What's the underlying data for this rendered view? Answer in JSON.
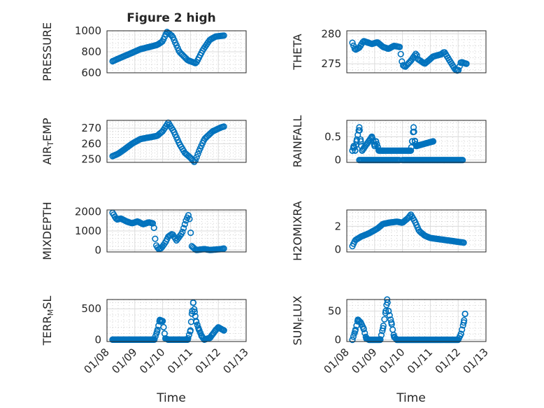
{
  "figure_title": "Figure 2 high",
  "x_axis_label": "Time",
  "x_ticks": [
    "01/08",
    "01/09",
    "01/10",
    "01/11",
    "01/12",
    "01/13"
  ],
  "chart_data": [
    {
      "id": "pressure",
      "type": "scatter",
      "title": "Figure 2 high",
      "ylabel_parts": [
        {
          "t": "PRESSURE"
        }
      ],
      "xlabel": "",
      "xlim": [
        0,
        5
      ],
      "ylim": [
        600,
        1000
      ],
      "yticks": [
        600,
        800,
        1000
      ],
      "ytick_labels": [
        "600",
        "800",
        "1000"
      ],
      "grid": true,
      "marker": "circle",
      "color": "#0072BD",
      "anchors": [
        [
          0.2,
          710
        ],
        [
          0.5,
          745
        ],
        [
          0.9,
          790
        ],
        [
          1.2,
          825
        ],
        [
          1.5,
          845
        ],
        [
          1.8,
          865
        ],
        [
          2.0,
          900
        ],
        [
          2.15,
          990
        ],
        [
          2.35,
          950
        ],
        [
          2.6,
          800
        ],
        [
          2.9,
          720
        ],
        [
          3.1,
          700
        ],
        [
          3.2,
          690
        ],
        [
          3.45,
          820
        ],
        [
          3.7,
          915
        ],
        [
          3.9,
          945
        ],
        [
          4.2,
          955
        ]
      ],
      "n_points": 95
    },
    {
      "id": "theta",
      "type": "scatter",
      "ylabel_parts": [
        {
          "t": "THETA"
        }
      ],
      "xlabel": "",
      "xlim": [
        0,
        5
      ],
      "ylim": [
        273.5,
        280.5
      ],
      "yticks": [
        275,
        280
      ],
      "ytick_labels": [
        "275",
        "280"
      ],
      "grid": true,
      "marker": "circle",
      "color": "#0072BD",
      "anchors": [
        [
          0.2,
          278.5
        ],
        [
          0.3,
          277.3
        ],
        [
          0.45,
          277.7
        ],
        [
          0.6,
          278.8
        ],
        [
          0.9,
          278.3
        ],
        [
          1.1,
          278.6
        ],
        [
          1.3,
          277.8
        ],
        [
          1.5,
          277.5
        ],
        [
          1.7,
          278.0
        ],
        [
          1.9,
          277.8
        ],
        [
          2.0,
          274.8
        ],
        [
          2.1,
          274.5
        ],
        [
          2.3,
          275.5
        ],
        [
          2.5,
          276.8
        ],
        [
          2.55,
          275.8
        ],
        [
          2.8,
          275.0
        ],
        [
          3.1,
          276.2
        ],
        [
          3.4,
          276.6
        ],
        [
          3.5,
          277.0
        ],
        [
          3.7,
          275.5
        ],
        [
          3.9,
          274.0
        ],
        [
          4.0,
          273.8
        ],
        [
          4.1,
          275.3
        ],
        [
          4.3,
          275.0
        ]
      ],
      "n_points": 100
    },
    {
      "id": "airtemp",
      "type": "scatter",
      "ylabel_parts": [
        {
          "t": "AIR"
        },
        {
          "t": "T",
          "sub": true
        },
        {
          "t": "EMP"
        }
      ],
      "xlabel": "",
      "xlim": [
        0,
        5
      ],
      "ylim": [
        248,
        275
      ],
      "yticks": [
        250,
        260,
        270
      ],
      "ytick_labels": [
        "250",
        "260",
        "270"
      ],
      "grid": true,
      "marker": "circle",
      "color": "#0072BD",
      "anchors": [
        [
          0.2,
          252
        ],
        [
          0.4,
          253.5
        ],
        [
          0.6,
          256
        ],
        [
          0.9,
          260
        ],
        [
          1.2,
          263
        ],
        [
          1.5,
          264
        ],
        [
          1.8,
          265
        ],
        [
          2.0,
          268
        ],
        [
          2.2,
          273.5
        ],
        [
          2.4,
          268
        ],
        [
          2.6,
          260
        ],
        [
          2.8,
          254
        ],
        [
          3.0,
          251
        ],
        [
          3.15,
          248
        ],
        [
          3.3,
          255
        ],
        [
          3.5,
          263
        ],
        [
          3.8,
          268
        ],
        [
          4.1,
          270.5
        ],
        [
          4.2,
          271
        ]
      ],
      "n_points": 95
    },
    {
      "id": "rainfall",
      "type": "scatter",
      "ylabel_parts": [
        {
          "t": "RAINFALL"
        }
      ],
      "xlabel": "",
      "xlim": [
        0,
        5
      ],
      "ylim": [
        -0.05,
        0.85
      ],
      "yticks": [
        0,
        0.5
      ],
      "ytick_labels": [
        "0",
        "0.5"
      ],
      "grid": true,
      "marker": "circle",
      "color": "#0072BD",
      "anchors": [
        [
          0.2,
          0.2
        ],
        [
          0.25,
          0.3
        ],
        [
          0.3,
          0.2
        ],
        [
          0.35,
          0.4
        ],
        [
          0.45,
          0.7
        ],
        [
          0.5,
          0.4
        ],
        [
          0.55,
          0.2
        ],
        [
          0.9,
          0.5
        ],
        [
          1.0,
          0.3
        ],
        [
          1.05,
          0.4
        ],
        [
          1.15,
          0.2
        ],
        [
          1.3,
          0.2
        ],
        [
          2.3,
          0.2
        ],
        [
          2.35,
          0.4
        ],
        [
          2.4,
          0.7
        ],
        [
          2.45,
          0.4
        ],
        [
          2.5,
          0.3
        ],
        [
          3.1,
          0.4
        ]
      ],
      "baseline_segments": [
        [
          0.45,
          1.9
        ],
        [
          2.0,
          4.2
        ]
      ],
      "n_points": 90
    },
    {
      "id": "mixdepth",
      "type": "scatter",
      "ylabel_parts": [
        {
          "t": "MIXDEPTH"
        }
      ],
      "xlabel": "",
      "xlim": [
        0,
        5
      ],
      "ylim": [
        -100,
        2100
      ],
      "yticks": [
        0,
        1000,
        2000
      ],
      "ytick_labels": [
        "0",
        "1000",
        "2000"
      ],
      "grid": true,
      "marker": "circle",
      "color": "#0072BD",
      "anchors": [
        [
          0.2,
          1950
        ],
        [
          0.35,
          1600
        ],
        [
          0.5,
          1650
        ],
        [
          0.7,
          1500
        ],
        [
          0.9,
          1400
        ],
        [
          1.1,
          1500
        ],
        [
          1.3,
          1350
        ],
        [
          1.5,
          1450
        ],
        [
          1.65,
          1400
        ],
        [
          1.7,
          1100
        ],
        [
          1.75,
          300
        ],
        [
          1.85,
          50
        ],
        [
          1.95,
          100
        ],
        [
          2.1,
          400
        ],
        [
          2.2,
          700
        ],
        [
          2.35,
          850
        ],
        [
          2.5,
          500
        ],
        [
          2.7,
          900
        ],
        [
          2.85,
          1600
        ],
        [
          2.95,
          1900
        ],
        [
          3.05,
          200
        ],
        [
          3.2,
          0
        ],
        [
          3.5,
          50
        ],
        [
          3.7,
          0
        ],
        [
          4.1,
          50
        ],
        [
          4.2,
          80
        ]
      ],
      "n_points": 95
    },
    {
      "id": "h2omixra",
      "type": "scatter",
      "ylabel_parts": [
        {
          "t": "H2OMIXRA"
        }
      ],
      "xlabel": "",
      "xlim": [
        0,
        5
      ],
      "ylim": [
        -0.2,
        3.4
      ],
      "yticks": [
        0,
        2
      ],
      "ytick_labels": [
        "0",
        "2"
      ],
      "grid": true,
      "marker": "circle",
      "color": "#0072BD",
      "anchors": [
        [
          0.2,
          0.3
        ],
        [
          0.3,
          0.8
        ],
        [
          0.5,
          1.1
        ],
        [
          0.8,
          1.4
        ],
        [
          1.1,
          1.8
        ],
        [
          1.3,
          2.2
        ],
        [
          1.5,
          2.3
        ],
        [
          1.8,
          2.4
        ],
        [
          2.0,
          2.3
        ],
        [
          2.2,
          2.7
        ],
        [
          2.3,
          3.0
        ],
        [
          2.45,
          2.4
        ],
        [
          2.6,
          1.6
        ],
        [
          2.8,
          1.2
        ],
        [
          3.0,
          1.0
        ],
        [
          3.3,
          0.9
        ],
        [
          3.6,
          0.8
        ],
        [
          3.9,
          0.7
        ],
        [
          4.2,
          0.6
        ]
      ],
      "n_points": 100
    },
    {
      "id": "terrmsl",
      "type": "scatter",
      "ylabel_parts": [
        {
          "t": "TERR"
        },
        {
          "t": "M",
          "sub": true
        },
        {
          "t": "SL"
        }
      ],
      "xlabel": "",
      "xlim": [
        0,
        5
      ],
      "ylim": [
        -30,
        650
      ],
      "yticks": [
        0,
        500
      ],
      "ytick_labels": [
        "0",
        "500"
      ],
      "grid": true,
      "marker": "circle",
      "color": "#0072BD",
      "anchors": [
        [
          0.2,
          0
        ],
        [
          1.7,
          0
        ],
        [
          1.8,
          130
        ],
        [
          1.9,
          320
        ],
        [
          2.0,
          300
        ],
        [
          2.1,
          20
        ],
        [
          2.2,
          0
        ],
        [
          2.9,
          0
        ],
        [
          3.0,
          150
        ],
        [
          3.05,
          420
        ],
        [
          3.1,
          600
        ],
        [
          3.15,
          450
        ],
        [
          3.2,
          300
        ],
        [
          3.3,
          170
        ],
        [
          3.4,
          60
        ],
        [
          3.5,
          0
        ],
        [
          3.7,
          30
        ],
        [
          3.9,
          150
        ],
        [
          4.0,
          200
        ],
        [
          4.2,
          150
        ]
      ],
      "baseline_segments": [
        [
          0.2,
          1.7
        ],
        [
          2.2,
          2.9
        ]
      ],
      "n_points": 110
    },
    {
      "id": "sunflux",
      "type": "scatter",
      "ylabel_parts": [
        {
          "t": "SUN"
        },
        {
          "t": "F",
          "sub": true
        },
        {
          "t": "LUX"
        }
      ],
      "xlabel": "Time",
      "xlim": [
        0,
        5
      ],
      "ylim": [
        -3,
        70
      ],
      "yticks": [
        0,
        50
      ],
      "ytick_labels": [
        "0",
        "50"
      ],
      "grid": true,
      "marker": "circle",
      "color": "#0072BD",
      "anchors": [
        [
          0.2,
          0
        ],
        [
          0.3,
          15
        ],
        [
          0.4,
          35
        ],
        [
          0.5,
          30
        ],
        [
          0.6,
          20
        ],
        [
          0.7,
          2
        ],
        [
          0.8,
          0
        ],
        [
          1.2,
          0
        ],
        [
          1.3,
          20
        ],
        [
          1.4,
          50
        ],
        [
          1.45,
          70
        ],
        [
          1.5,
          50
        ],
        [
          1.6,
          30
        ],
        [
          1.7,
          5
        ],
        [
          1.8,
          0
        ],
        [
          4.0,
          0
        ],
        [
          4.1,
          10
        ],
        [
          4.2,
          30
        ],
        [
          4.25,
          45
        ]
      ],
      "baseline_segments": [
        [
          0.8,
          1.2
        ],
        [
          1.8,
          4.0
        ]
      ],
      "n_points": 110
    }
  ]
}
